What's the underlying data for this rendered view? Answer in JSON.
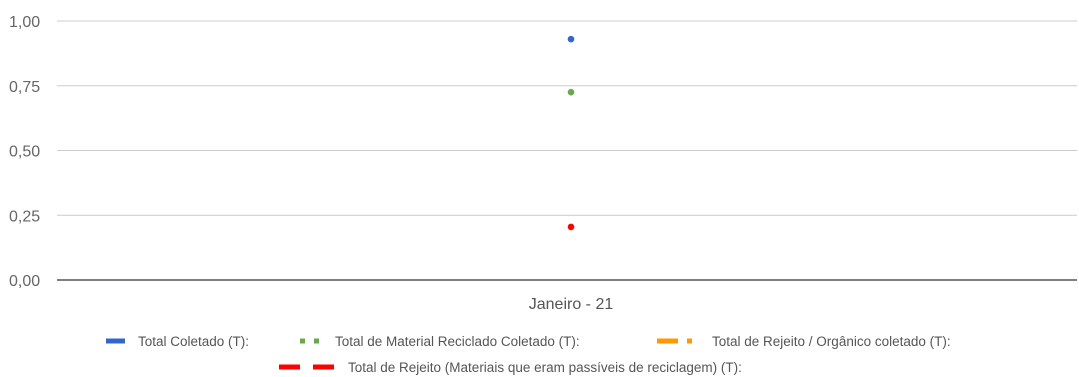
{
  "chart_data": {
    "type": "line",
    "categories": [
      "Janeiro - 21"
    ],
    "ylim": [
      0,
      1
    ],
    "yticks": [
      "0,00",
      "0,25",
      "0,50",
      "0,75",
      "1,00"
    ],
    "ytick_values": [
      0,
      0.25,
      0.5,
      0.75,
      1.0
    ],
    "grid": true,
    "legend_position": "bottom",
    "series": [
      {
        "name": "Total Coletado (T):",
        "values": [
          0.93
        ],
        "color": "#3366cc",
        "dash": "solid"
      },
      {
        "name": "Total de Material Reciclado Coletado (T):",
        "values": [
          0.725
        ],
        "color": "#6aa84f",
        "dash": "dotted"
      },
      {
        "name": "Total de Rejeito / Orgânico coletado (T):",
        "values": [
          null
        ],
        "color": "#ff9900",
        "dash": "dash-dot"
      },
      {
        "name": "Total de Rejeito (Materiais que eram passíveis de reciclagem) (T):",
        "values": [
          0.205
        ],
        "color": "#ff0000",
        "dash": "dashed"
      }
    ]
  }
}
